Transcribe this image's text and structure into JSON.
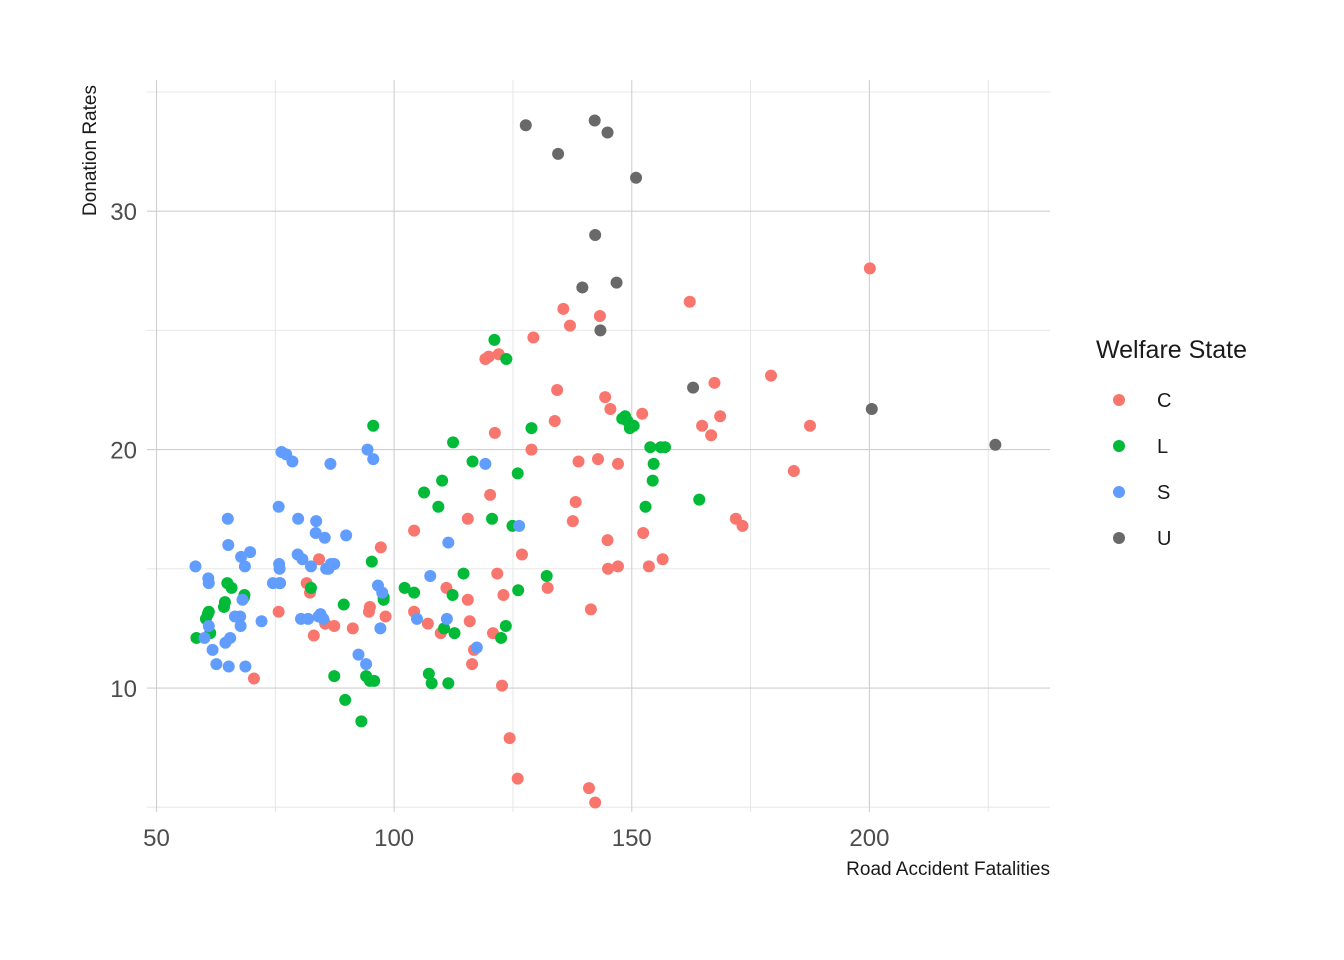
{
  "chart_data": {
    "type": "scatter",
    "xlabel": "Road Accident Fatalities",
    "ylabel": "Donation Rates",
    "xlim": [
      48,
      238
    ],
    "ylim": [
      4.8,
      35.5
    ],
    "x_ticks": [
      50,
      100,
      150,
      200
    ],
    "y_ticks": [
      10,
      20,
      30
    ],
    "x_minor": [
      75,
      125,
      175,
      225
    ],
    "y_minor": [
      5,
      15,
      25,
      35
    ],
    "grid": true,
    "legend": {
      "title": "Welfare State",
      "position": "right"
    },
    "series": [
      {
        "name": "C",
        "color": "#F8766D",
        "points": [
          [
            70.5,
            10.4
          ],
          [
            75.7,
            13.2
          ],
          [
            81.6,
            14.4
          ],
          [
            82.3,
            14.0
          ],
          [
            83.1,
            12.2
          ],
          [
            84.2,
            15.4
          ],
          [
            85.5,
            12.7
          ],
          [
            87.4,
            12.6
          ],
          [
            91.3,
            12.5
          ],
          [
            94.7,
            13.2
          ],
          [
            94.9,
            13.4
          ],
          [
            97.2,
            15.9
          ],
          [
            98.2,
            13.0
          ],
          [
            104.2,
            16.6
          ],
          [
            104.2,
            13.2
          ],
          [
            107.1,
            12.7
          ],
          [
            109.8,
            12.3
          ],
          [
            111.0,
            14.2
          ],
          [
            115.5,
            17.1
          ],
          [
            115.5,
            13.7
          ],
          [
            115.9,
            12.8
          ],
          [
            116.4,
            11.0
          ],
          [
            116.8,
            11.6
          ],
          [
            119.2,
            23.8
          ],
          [
            119.9,
            23.9
          ],
          [
            120.2,
            18.1
          ],
          [
            120.8,
            12.3
          ],
          [
            121.2,
            20.7
          ],
          [
            121.7,
            14.8
          ],
          [
            122.0,
            24.0
          ],
          [
            122.7,
            10.1
          ],
          [
            123.0,
            13.9
          ],
          [
            124.3,
            7.9
          ],
          [
            126.0,
            6.2
          ],
          [
            126.9,
            15.6
          ],
          [
            128.9,
            20.0
          ],
          [
            129.3,
            24.7
          ],
          [
            132.3,
            14.2
          ],
          [
            133.8,
            21.2
          ],
          [
            134.3,
            22.5
          ],
          [
            135.6,
            25.9
          ],
          [
            137.0,
            25.2
          ],
          [
            137.6,
            17.0
          ],
          [
            138.2,
            17.8
          ],
          [
            138.8,
            19.5
          ],
          [
            141.0,
            5.8
          ],
          [
            141.4,
            13.3
          ],
          [
            142.3,
            5.2
          ],
          [
            142.9,
            19.6
          ],
          [
            143.3,
            25.6
          ],
          [
            144.4,
            22.2
          ],
          [
            144.9,
            16.2
          ],
          [
            145.0,
            15.0
          ],
          [
            145.5,
            21.7
          ],
          [
            147.1,
            15.1
          ],
          [
            147.1,
            19.4
          ],
          [
            152.2,
            21.5
          ],
          [
            152.4,
            16.5
          ],
          [
            153.6,
            15.1
          ],
          [
            156.5,
            15.4
          ],
          [
            162.2,
            26.2
          ],
          [
            164.8,
            21.0
          ],
          [
            166.7,
            20.6
          ],
          [
            167.4,
            22.8
          ],
          [
            168.6,
            21.4
          ],
          [
            171.9,
            17.1
          ],
          [
            173.3,
            16.8
          ],
          [
            179.3,
            23.1
          ],
          [
            184.1,
            19.1
          ],
          [
            187.5,
            21.0
          ],
          [
            200.1,
            27.6
          ]
        ]
      },
      {
        "name": "L",
        "color": "#00BA38",
        "points": [
          [
            58.4,
            12.1
          ],
          [
            60.4,
            12.9
          ],
          [
            60.8,
            13.1
          ],
          [
            61.0,
            13.2
          ],
          [
            61.3,
            12.3
          ],
          [
            64.2,
            13.4
          ],
          [
            64.4,
            13.6
          ],
          [
            64.9,
            14.4
          ],
          [
            65.8,
            14.2
          ],
          [
            68.4,
            13.8
          ],
          [
            68.5,
            13.9
          ],
          [
            75.9,
            14.4
          ],
          [
            82.5,
            14.2
          ],
          [
            87.4,
            10.5
          ],
          [
            89.4,
            13.5
          ],
          [
            89.7,
            9.5
          ],
          [
            93.1,
            8.6
          ],
          [
            94.1,
            10.5
          ],
          [
            94.9,
            10.3
          ],
          [
            95.3,
            15.3
          ],
          [
            95.6,
            21.0
          ],
          [
            95.8,
            10.3
          ],
          [
            97.8,
            13.7
          ],
          [
            97.8,
            13.8
          ],
          [
            102.2,
            14.2
          ],
          [
            104.2,
            14.0
          ],
          [
            106.3,
            18.2
          ],
          [
            107.3,
            10.6
          ],
          [
            107.9,
            10.2
          ],
          [
            109.3,
            17.6
          ],
          [
            110.1,
            18.7
          ],
          [
            110.5,
            12.5
          ],
          [
            111.4,
            10.2
          ],
          [
            112.3,
            13.9
          ],
          [
            112.4,
            20.3
          ],
          [
            112.7,
            12.3
          ],
          [
            114.6,
            14.8
          ],
          [
            116.5,
            19.5
          ],
          [
            120.6,
            17.1
          ],
          [
            121.1,
            24.6
          ],
          [
            122.5,
            12.1
          ],
          [
            123.5,
            12.6
          ],
          [
            123.6,
            23.8
          ],
          [
            124.9,
            16.8
          ],
          [
            126.0,
            19.0
          ],
          [
            126.1,
            14.1
          ],
          [
            128.9,
            20.9
          ],
          [
            132.1,
            14.7
          ],
          [
            148.0,
            21.3
          ],
          [
            148.6,
            21.4
          ],
          [
            149.1,
            21.2
          ],
          [
            149.6,
            20.9
          ],
          [
            150.4,
            21.0
          ],
          [
            152.9,
            17.6
          ],
          [
            153.9,
            20.1
          ],
          [
            154.4,
            18.7
          ],
          [
            154.6,
            19.4
          ],
          [
            156.1,
            20.1
          ],
          [
            157.0,
            20.1
          ],
          [
            164.2,
            17.9
          ]
        ]
      },
      {
        "name": "S",
        "color": "#619CFF",
        "points": [
          [
            58.2,
            15.1
          ],
          [
            60.1,
            12.1
          ],
          [
            60.9,
            14.6
          ],
          [
            61.0,
            14.4
          ],
          [
            61.0,
            12.6
          ],
          [
            61.8,
            11.6
          ],
          [
            62.6,
            11.0
          ],
          [
            64.5,
            11.9
          ],
          [
            65.0,
            17.1
          ],
          [
            65.1,
            16.0
          ],
          [
            65.2,
            10.9
          ],
          [
            65.5,
            12.1
          ],
          [
            66.5,
            13.0
          ],
          [
            67.6,
            13.0
          ],
          [
            67.7,
            12.6
          ],
          [
            67.8,
            15.5
          ],
          [
            68.1,
            13.7
          ],
          [
            68.6,
            15.1
          ],
          [
            68.7,
            10.9
          ],
          [
            69.7,
            15.7
          ],
          [
            72.1,
            12.8
          ],
          [
            74.5,
            14.4
          ],
          [
            75.7,
            17.6
          ],
          [
            75.8,
            15.2
          ],
          [
            75.9,
            15.0
          ],
          [
            76.0,
            14.4
          ],
          [
            76.3,
            19.9
          ],
          [
            77.3,
            19.8
          ],
          [
            78.6,
            19.5
          ],
          [
            79.7,
            15.6
          ],
          [
            79.8,
            17.1
          ],
          [
            80.4,
            12.9
          ],
          [
            80.7,
            15.4
          ],
          [
            81.9,
            12.9
          ],
          [
            82.5,
            15.1
          ],
          [
            83.5,
            16.5
          ],
          [
            83.6,
            17.0
          ],
          [
            84.1,
            13.0
          ],
          [
            84.5,
            13.1
          ],
          [
            85.1,
            12.9
          ],
          [
            85.4,
            16.3
          ],
          [
            85.7,
            15.0
          ],
          [
            86.2,
            15.0
          ],
          [
            86.6,
            19.4
          ],
          [
            86.7,
            15.2
          ],
          [
            87.4,
            15.2
          ],
          [
            89.9,
            16.4
          ],
          [
            92.5,
            11.4
          ],
          [
            94.1,
            11.0
          ],
          [
            94.4,
            20.0
          ],
          [
            95.6,
            19.6
          ],
          [
            96.6,
            14.3
          ],
          [
            97.1,
            12.5
          ],
          [
            97.5,
            14.0
          ],
          [
            104.8,
            12.9
          ],
          [
            107.6,
            14.7
          ],
          [
            111.1,
            12.9
          ],
          [
            111.4,
            16.1
          ],
          [
            117.4,
            11.7
          ],
          [
            119.2,
            19.4
          ],
          [
            126.3,
            16.8
          ]
        ]
      },
      {
        "name": "U",
        "color": "#696969",
        "points": [
          [
            127.7,
            33.6
          ],
          [
            134.5,
            32.4
          ],
          [
            139.6,
            26.8
          ],
          [
            142.2,
            33.8
          ],
          [
            142.3,
            29.0
          ],
          [
            143.4,
            25.0
          ],
          [
            144.9,
            33.3
          ],
          [
            146.8,
            27.0
          ],
          [
            150.9,
            31.4
          ],
          [
            162.9,
            22.6
          ],
          [
            200.5,
            21.7
          ],
          [
            226.5,
            20.2
          ]
        ]
      }
    ]
  }
}
